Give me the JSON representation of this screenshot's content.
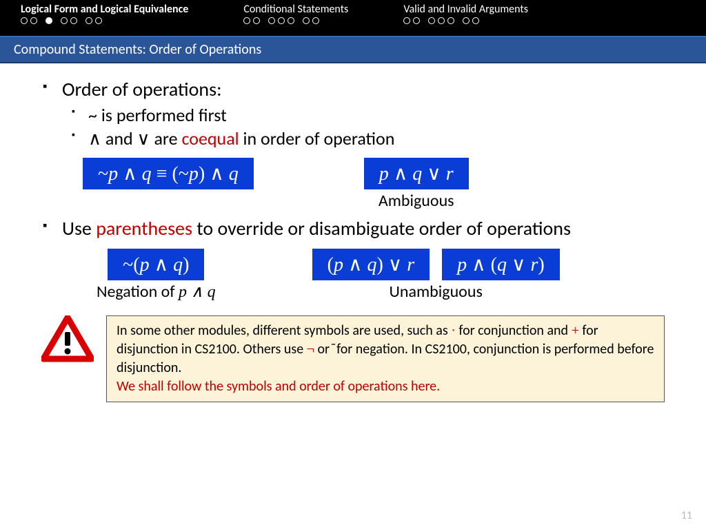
{
  "topbar": {
    "sections": [
      {
        "title": "Logical Form and Logical Equivalence",
        "dots": [
          [
            0,
            0
          ],
          [
            1
          ],
          [
            0,
            0
          ],
          [
            0,
            0
          ]
        ]
      },
      {
        "title": "Conditional Statements",
        "dots": [
          [
            0,
            0
          ],
          [
            0,
            0,
            0
          ],
          [
            0,
            0
          ]
        ]
      },
      {
        "title": "Valid and Invalid Arguments",
        "dots": [
          [
            0,
            0
          ],
          [
            0,
            0,
            0
          ],
          [
            0,
            0
          ]
        ]
      }
    ]
  },
  "subheader": "Compound Statements: Order of Operations",
  "b1": "Order of operations:",
  "b1a": "~ is performed first",
  "b1b_pre": "∧ and ∨ are ",
  "b1b_red": "coequal",
  "b1b_post": " in order of operation",
  "formula1": "~p ∧ q ≡ (~p) ∧ q",
  "formula2": "p ∧ q ∨ r",
  "caption2": "Ambiguous",
  "b2_pre": "Use ",
  "b2_red": "parentheses",
  "b2_post": " to override or disambiguate order of operations",
  "formula3": "~(p ∧ q)",
  "caption3_pre": "Negation of ",
  "caption3_it": "p ∧ q",
  "formula4": "(p ∧ q) ∨ r",
  "formula5": "p ∧ (q ∨ r)",
  "caption45": "Unambiguous",
  "note_t1": "In some other modules, different symbols are used, such as ",
  "note_s1": "·",
  "note_t2": " for conjunction and ",
  "note_s2": "+",
  "note_t3": " for disjunction in CS2100. Others use ",
  "note_s3": "¬",
  "note_t4": " or  ̄  for negation. In CS2100, conjunction is performed before disjunction.",
  "note_red": "We shall follow the symbols and order of operations here.",
  "pagenum": "11",
  "colors": {
    "formula_bg": "#0a3cd6",
    "red": "#c00000",
    "note_bg": "#fdf3d9",
    "subheader_bg": "#2a5599"
  }
}
